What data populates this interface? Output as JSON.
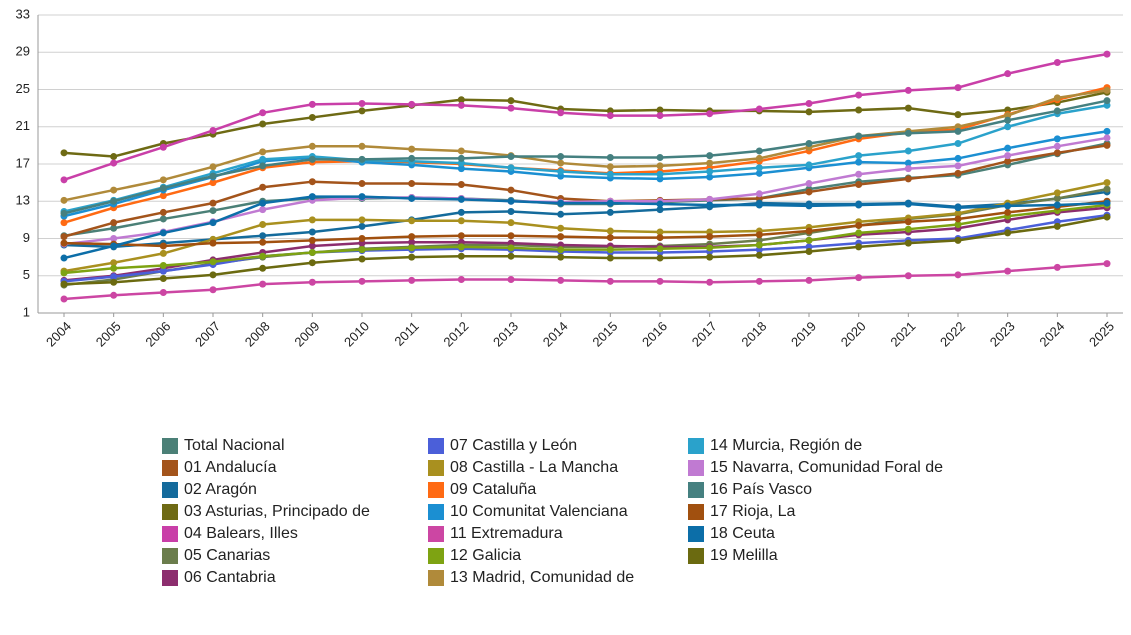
{
  "chart_data": {
    "type": "line",
    "categories": [
      "2004",
      "2005",
      "2006",
      "2007",
      "2008",
      "2009",
      "2010",
      "2011",
      "2012",
      "2013",
      "2014",
      "2015",
      "2016",
      "2017",
      "2018",
      "2019",
      "2020",
      "2021",
      "2022",
      "2023",
      "2024",
      "2025"
    ],
    "ylim": [
      1,
      33
    ],
    "yticks": [
      1,
      5,
      9,
      13,
      17,
      21,
      25,
      29,
      33
    ],
    "grid": true,
    "series": [
      {
        "name": "Total Nacional",
        "color": "#4b8077",
        "values": [
          9.3,
          10.1,
          11.1,
          12.0,
          13.0,
          13.3,
          13.3,
          13.4,
          13.3,
          13.1,
          12.7,
          12.7,
          12.9,
          13.1,
          13.3,
          14.3,
          15.1,
          15.5,
          15.8,
          16.9,
          18.1,
          19.2
        ]
      },
      {
        "name": "01 Andalucía",
        "color": "#a3541b",
        "values": [
          9.2,
          10.7,
          11.8,
          12.8,
          14.5,
          15.1,
          14.9,
          14.9,
          14.8,
          14.2,
          13.3,
          13.0,
          13.1,
          13.2,
          13.3,
          14.0,
          14.8,
          15.4,
          16.0,
          17.3,
          18.2,
          19.0
        ]
      },
      {
        "name": "02 Aragón",
        "color": "#146b9c",
        "values": [
          8.3,
          8.1,
          8.5,
          8.9,
          9.3,
          9.7,
          10.3,
          11.0,
          11.8,
          11.9,
          11.6,
          11.8,
          12.1,
          12.4,
          12.8,
          12.7,
          12.7,
          12.8,
          12.4,
          12.7,
          13.3,
          14.0
        ]
      },
      {
        "name": "03 Asturias, Principado de",
        "color": "#6e6a14",
        "values": [
          18.2,
          17.8,
          19.2,
          20.2,
          21.3,
          22.0,
          22.7,
          23.3,
          23.9,
          23.8,
          22.9,
          22.7,
          22.8,
          22.7,
          22.7,
          22.6,
          22.8,
          23.0,
          22.3,
          22.8,
          23.6,
          24.7
        ]
      },
      {
        "name": "04 Balears, Illes",
        "color": "#c93fa8",
        "values": [
          15.3,
          17.1,
          18.8,
          20.6,
          22.5,
          23.4,
          23.5,
          23.4,
          23.3,
          23.0,
          22.5,
          22.2,
          22.2,
          22.4,
          22.9,
          23.5,
          24.4,
          24.9,
          25.2,
          26.7,
          27.9,
          28.8
        ]
      },
      {
        "name": "05 Canarias",
        "color": "#6b7d4c",
        "values": [
          4.0,
          4.6,
          5.5,
          6.3,
          7.0,
          7.5,
          7.9,
          8.1,
          8.3,
          8.3,
          8.1,
          8.1,
          8.2,
          8.4,
          8.8,
          9.6,
          10.4,
          11.1,
          11.6,
          12.6,
          13.3,
          14.3
        ]
      },
      {
        "name": "06 Cantabria",
        "color": "#8c2d6e",
        "values": [
          4.5,
          5.0,
          5.8,
          6.7,
          7.5,
          8.2,
          8.5,
          8.6,
          8.6,
          8.5,
          8.3,
          8.2,
          8.1,
          8.1,
          8.3,
          8.8,
          9.4,
          9.7,
          10.1,
          11.0,
          11.8,
          12.3
        ]
      },
      {
        "name": "07 Castilla y León",
        "color": "#4b5fd9",
        "values": [
          4.4,
          4.9,
          5.5,
          6.2,
          7.1,
          7.5,
          7.7,
          7.8,
          7.9,
          7.8,
          7.6,
          7.5,
          7.5,
          7.6,
          7.8,
          8.1,
          8.5,
          8.8,
          9.0,
          9.9,
          10.8,
          11.5
        ]
      },
      {
        "name": "08 Castilla - La Mancha",
        "color": "#a9901f",
        "values": [
          5.5,
          6.4,
          7.4,
          8.9,
          10.5,
          11.0,
          11.0,
          10.9,
          10.9,
          10.7,
          10.1,
          9.8,
          9.7,
          9.7,
          9.8,
          10.2,
          10.8,
          11.2,
          11.7,
          12.8,
          13.9,
          15.0
        ]
      },
      {
        "name": "09 Cataluña",
        "color": "#ff6a13",
        "values": [
          10.7,
          12.3,
          13.6,
          15.0,
          16.6,
          17.2,
          17.3,
          17.2,
          17.0,
          16.6,
          16.3,
          16.0,
          16.2,
          16.6,
          17.3,
          18.4,
          19.7,
          20.4,
          20.7,
          22.3,
          23.9,
          25.2
        ]
      },
      {
        "name": "10 Comunitat Valenciana",
        "color": "#1b8fd2",
        "values": [
          11.4,
          12.7,
          14.2,
          15.6,
          17.3,
          17.7,
          17.2,
          16.9,
          16.5,
          16.2,
          15.7,
          15.5,
          15.4,
          15.6,
          16.0,
          16.6,
          17.2,
          17.1,
          17.6,
          18.7,
          19.7,
          20.5
        ]
      },
      {
        "name": "11 Extremadura",
        "color": "#cc46a3",
        "values": [
          2.5,
          2.9,
          3.2,
          3.5,
          4.1,
          4.3,
          4.4,
          4.5,
          4.6,
          4.6,
          4.5,
          4.4,
          4.4,
          4.3,
          4.4,
          4.5,
          4.8,
          5.0,
          5.1,
          5.5,
          5.9,
          6.3
        ]
      },
      {
        "name": "12 Galicia",
        "color": "#7ea312",
        "values": [
          5.3,
          5.8,
          6.1,
          6.5,
          7.1,
          7.5,
          7.8,
          8.0,
          8.1,
          8.0,
          7.8,
          7.8,
          7.9,
          8.0,
          8.3,
          8.8,
          9.6,
          10.0,
          10.5,
          11.4,
          12.0,
          12.6
        ]
      },
      {
        "name": "13 Madrid, Comunidad de",
        "color": "#b08a3a",
        "values": [
          13.1,
          14.2,
          15.3,
          16.7,
          18.3,
          18.9,
          18.9,
          18.6,
          18.4,
          17.9,
          17.1,
          16.7,
          16.8,
          17.1,
          17.6,
          18.8,
          20.0,
          20.5,
          21.0,
          22.2,
          24.1,
          24.9
        ]
      },
      {
        "name": "14 Murcia, Región de",
        "color": "#2aa2cb",
        "values": [
          11.9,
          13.1,
          14.5,
          16.0,
          17.5,
          17.8,
          17.4,
          17.3,
          17.1,
          16.6,
          16.2,
          15.9,
          15.9,
          16.2,
          16.6,
          16.9,
          17.9,
          18.4,
          19.2,
          21.0,
          22.4,
          23.3
        ]
      },
      {
        "name": "15 Navarra, Comunidad Foral de",
        "color": "#c07ad2",
        "values": [
          8.4,
          9.0,
          9.7,
          10.8,
          12.1,
          13.1,
          13.4,
          13.4,
          13.3,
          13.0,
          12.9,
          13.0,
          13.0,
          13.2,
          13.8,
          14.9,
          15.9,
          16.5,
          16.8,
          17.9,
          18.9,
          19.8
        ]
      },
      {
        "name": "16 País Vasco",
        "color": "#458080",
        "values": [
          11.7,
          13.0,
          14.4,
          15.7,
          16.8,
          17.5,
          17.5,
          17.6,
          17.6,
          17.8,
          17.8,
          17.7,
          17.7,
          17.9,
          18.4,
          19.2,
          20.0,
          20.3,
          20.5,
          21.7,
          22.7,
          23.8
        ]
      },
      {
        "name": "17 Rioja, La",
        "color": "#a1500f",
        "values": [
          8.5,
          8.4,
          8.2,
          8.5,
          8.6,
          8.8,
          9.0,
          9.2,
          9.3,
          9.3,
          9.2,
          9.1,
          9.1,
          9.2,
          9.4,
          9.8,
          10.4,
          10.8,
          11.1,
          11.8,
          12.4,
          13.0
        ]
      },
      {
        "name": "18 Ceuta",
        "color": "#0c6ea8",
        "values": [
          6.9,
          8.2,
          9.6,
          10.7,
          12.8,
          13.5,
          13.5,
          13.3,
          13.2,
          13.0,
          12.8,
          12.8,
          12.7,
          12.6,
          12.6,
          12.5,
          12.6,
          12.7,
          12.3,
          12.5,
          12.6,
          12.8
        ]
      },
      {
        "name": "19 Melilla",
        "color": "#6b6a10",
        "values": [
          4.1,
          4.3,
          4.7,
          5.1,
          5.8,
          6.4,
          6.8,
          7.0,
          7.1,
          7.1,
          7.0,
          6.9,
          6.9,
          7.0,
          7.2,
          7.6,
          8.1,
          8.5,
          8.8,
          9.6,
          10.3,
          11.3
        ]
      }
    ]
  }
}
